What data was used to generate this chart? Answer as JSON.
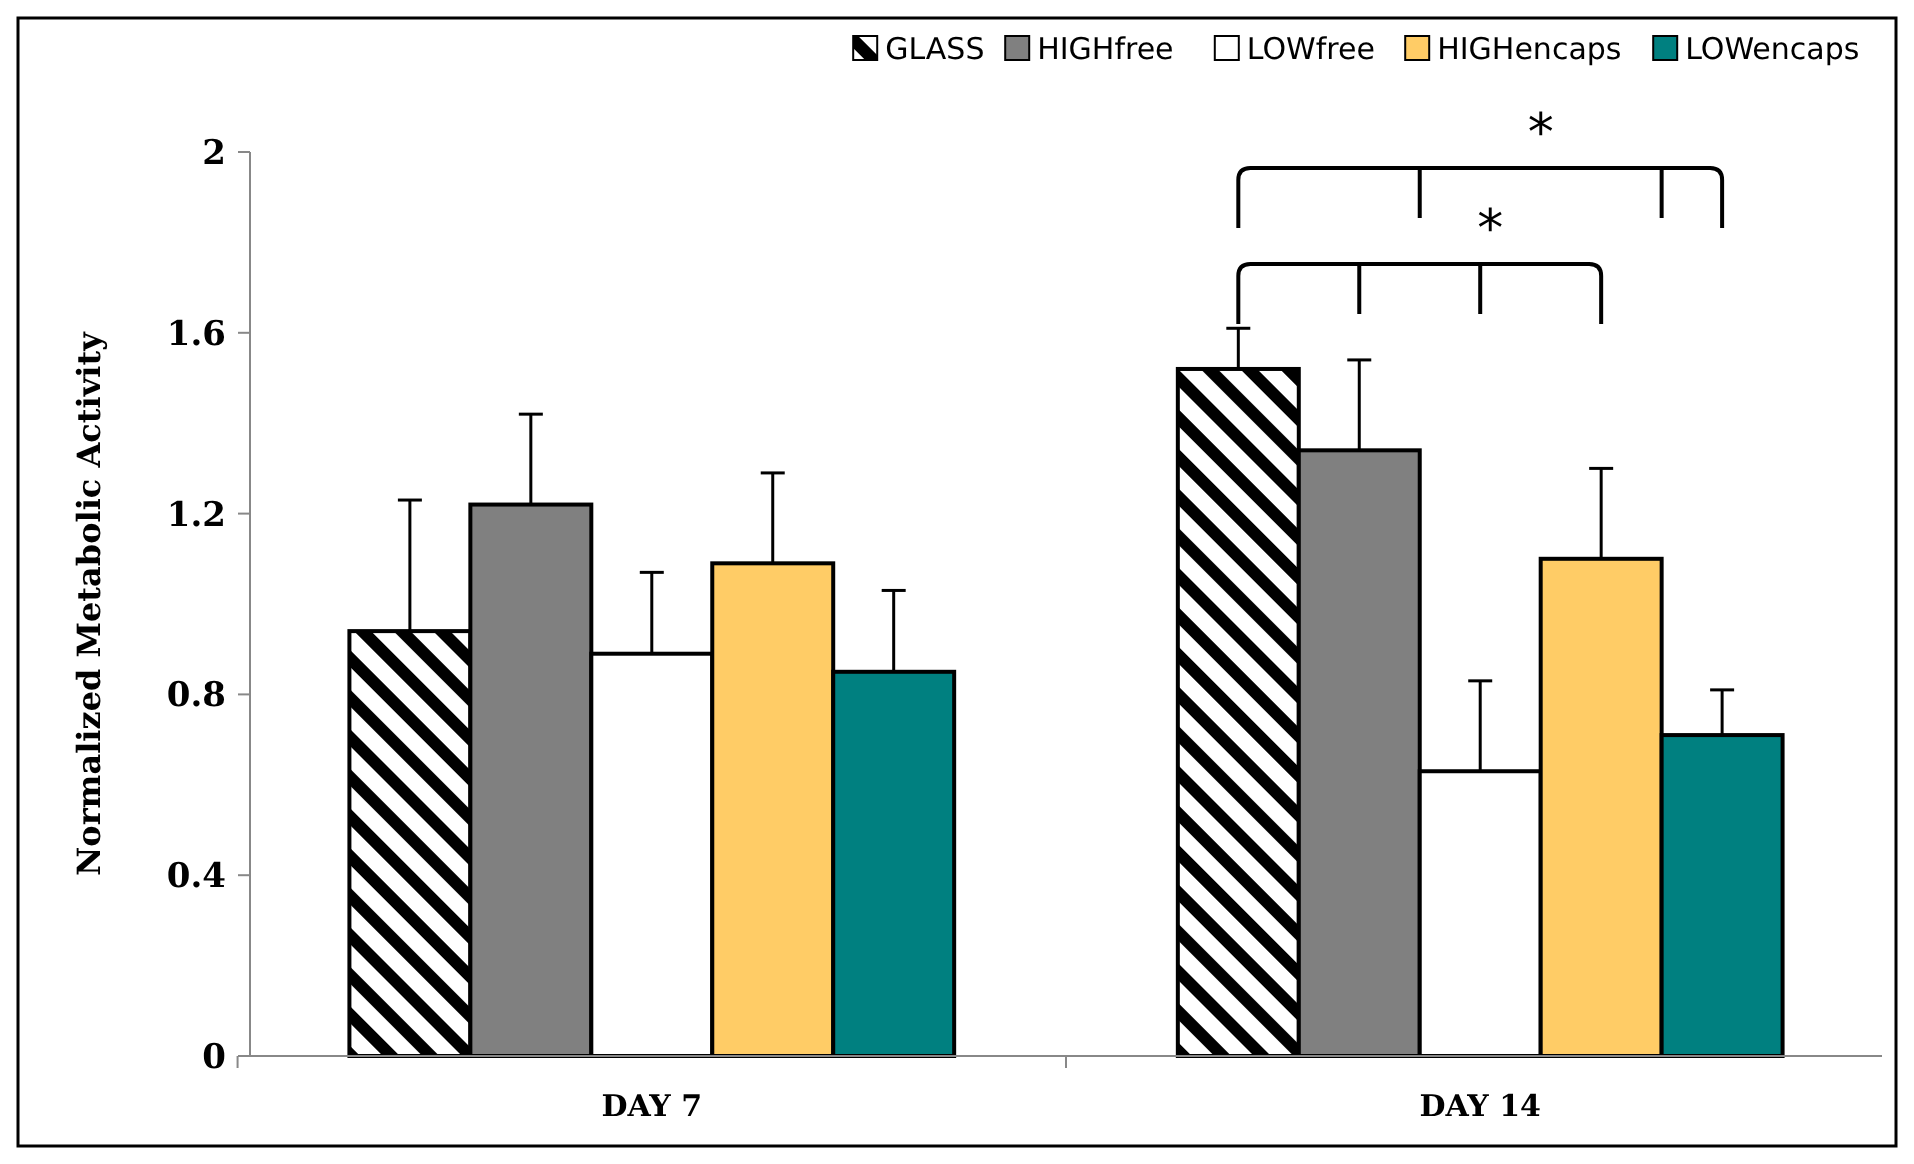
{
  "chart_data": {
    "type": "bar",
    "ylabel": "Normalized Metabolic Activity",
    "categories": [
      "DAY 7",
      "DAY 14"
    ],
    "series": [
      {
        "name": "GLASS",
        "color": "#000000",
        "values": [
          0.94,
          1.52
        ],
        "errors": [
          0.29,
          0.09
        ]
      },
      {
        "name": "HIGHfree",
        "color": "#808080",
        "values": [
          1.22,
          1.34
        ],
        "errors": [
          0.2,
          0.2
        ]
      },
      {
        "name": "LOWfree",
        "color": "#ffffff",
        "values": [
          0.89,
          0.63
        ],
        "errors": [
          0.18,
          0.2
        ]
      },
      {
        "name": "HIGHencaps",
        "color": "#ffcc66",
        "values": [
          1.09,
          1.1
        ],
        "errors": [
          0.2,
          0.2
        ]
      },
      {
        "name": "LOWencaps",
        "color": "#008080",
        "values": [
          0.85,
          0.71
        ],
        "errors": [
          0.18,
          0.1
        ]
      }
    ],
    "ylim": [
      0,
      2
    ],
    "yticks": [
      0,
      {
        "value": 0.4,
        "label": "0.4"
      },
      {
        "value": 0.8,
        "label": "0.8"
      },
      {
        "value": 1.2,
        "label": "1.2"
      },
      {
        "value": 1.6,
        "label": "1.6"
      },
      2
    ],
    "legend": "top",
    "annotations": [
      "*",
      "*"
    ]
  }
}
